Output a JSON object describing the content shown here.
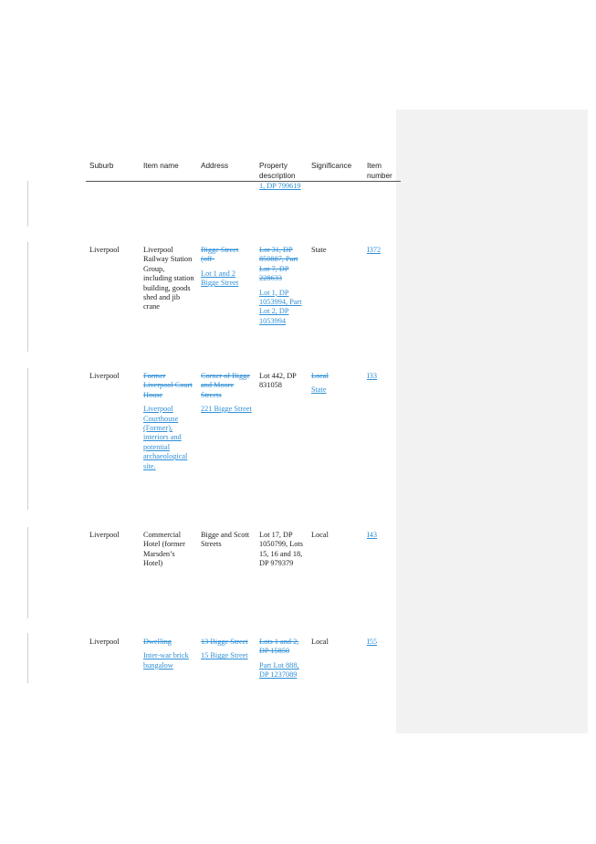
{
  "table": {
    "headers": {
      "suburb": "Suburb",
      "item_name": "Item name",
      "address": "Address",
      "property_line1": "Property",
      "property_line2": "description",
      "significance": "Significance",
      "item_line1": "Item",
      "item_line2": "number"
    },
    "row0": {
      "property": "1, DP 799619"
    },
    "row1": {
      "suburb": "Liverpool",
      "item_name": "Liverpool Railway Station Group, including station building, goods shed and jib crane",
      "address_del": "Bigge Street (off-",
      "address_ins": "Lot 1 and 2 Bigge Street",
      "property_del": "Lot 31, DP 850887, Part Lot 7, DP 228633",
      "property_ins": "Lot 1, DP 1053994, Part Lot 2, DP 1053994",
      "significance": "State",
      "item_number": "I372"
    },
    "row2": {
      "suburb": "Liverpool",
      "item_name_del": "Former Liverpool Court House",
      "item_name_ins": "Liverpool Courthouse (Former), interiors and potential archaeological site.",
      "address_del": "Corner of Bigge and Moore Streets",
      "address_ins": "221 Bigge Street",
      "property": "Lot 442, DP 831058",
      "significance_del": "Local",
      "significance_ins": "State",
      "item_number": "I33"
    },
    "row3": {
      "suburb": "Liverpool",
      "item_name": "Commercial Hotel (former Marsden’s Hotel)",
      "address": "Bigge and Scott Streets",
      "property": "Lot 17, DP 1050799, Lots 15, 16 and 18, DP 979379",
      "significance": "Local",
      "item_number": "I43"
    },
    "row4": {
      "suburb": "Liverpool",
      "item_name_del": "Dwelling",
      "item_name_ins": "Inter-war brick bungalow",
      "address_del": "13 Bigge Street",
      "address_ins": "15 Bigge Street",
      "property_del": "Lots 1 and 2, DP 15850",
      "property_ins": "Part Lot 888, DP 1237089",
      "significance": "Local",
      "item_number": "I55"
    }
  }
}
